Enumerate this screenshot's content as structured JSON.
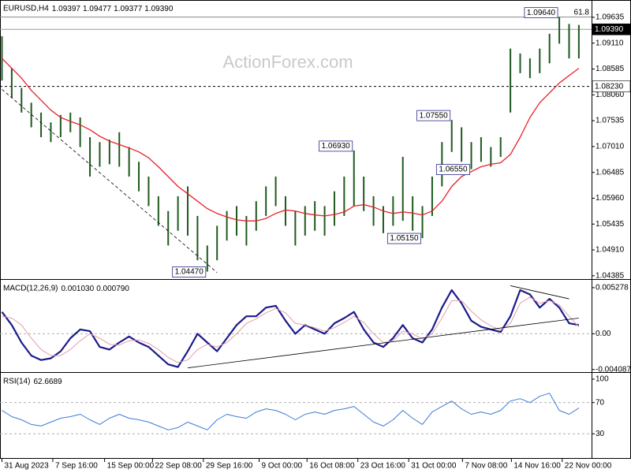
{
  "chart_data": [
    {
      "type": "hilo",
      "title": "EURUSD,H4",
      "quote": [
        1.09397,
        1.09477,
        1.09377,
        {
          "value": 1.0939,
          "label": "1.09390"
        }
      ],
      "watermark": "ActionForex.com",
      "color": "#1e5a1e",
      "xlim": [
        -0.2,
        60.3
      ],
      "ylim": [
        1.0435,
        1.0973
      ],
      "yticks": [
        1.09635,
        {
          "value": 1.0911,
          "label": "1.09110"
        },
        1.08585,
        {
          "value": 1.0806,
          "label": "1.08060"
        },
        1.07535,
        {
          "value": 1.0701,
          "label": "1.07010"
        },
        1.06485,
        {
          "value": 1.0596,
          "label": "1.05960"
        },
        1.05435,
        {
          "value": 1.0491,
          "label": "1.04910"
        },
        1.04385
      ],
      "low": [
        1.0835,
        1.08,
        1.077,
        1.074,
        1.072,
        1.071,
        1.072,
        1.073,
        1.07,
        1.064,
        1.066,
        1.0665,
        1.066,
        1.064,
        1.061,
        1.058,
        1.054,
        1.05,
        1.053,
        1.052,
        1.047,
        1.0447,
        1.047,
        1.051,
        1.052,
        1.05,
        1.053,
        1.056,
        1.058,
        1.054,
        1.05,
        1.052,
        1.053,
        1.052,
        1.054,
        1.056,
        1.058,
        1.057,
        1.054,
        1.0525,
        1.054,
        1.055,
        1.053,
        1.0515,
        1.056,
        1.062,
        1.069,
        1.067,
        1.0655,
        1.067,
        1.066,
        1.068,
        1.077,
        1.085,
        1.084,
        1.085,
        1.087,
        1.091,
        1.088,
        1.088
      ],
      "high": [
        1.0925,
        1.086,
        1.082,
        1.079,
        1.077,
        1.075,
        1.0765,
        1.077,
        1.076,
        1.072,
        1.071,
        1.0715,
        1.073,
        1.07,
        1.067,
        1.064,
        1.06,
        1.057,
        1.06,
        1.062,
        1.056,
        1.05,
        1.054,
        1.057,
        1.058,
        1.056,
        1.059,
        1.062,
        1.064,
        1.06,
        1.057,
        1.058,
        1.059,
        1.058,
        1.061,
        1.064,
        1.0693,
        1.064,
        1.06,
        1.058,
        1.06,
        1.068,
        1.06,
        1.058,
        1.064,
        1.071,
        1.0755,
        1.074,
        1.071,
        1.072,
        1.07,
        1.072,
        1.09,
        1.089,
        1.088,
        1.09,
        1.093,
        1.0964,
        1.095,
        1.0948
      ],
      "series": [
        {
          "color": "#e8202a",
          "width": 1.3,
          "values": [
            1.088,
            1.086,
            1.084,
            1.0815,
            1.0795,
            1.0775,
            1.076,
            1.0752,
            1.0745,
            1.0735,
            1.0722,
            1.0712,
            1.0705,
            1.0698,
            1.069,
            1.0678,
            1.066,
            1.064,
            1.062,
            1.0605,
            1.059,
            1.0575,
            1.0565,
            1.0558,
            1.0552,
            1.055,
            1.055,
            1.0555,
            1.0565,
            1.0572,
            1.057,
            1.0565,
            1.0562,
            1.056,
            1.0563,
            1.0568,
            1.058,
            1.0583,
            1.0578,
            1.057,
            1.0565,
            1.0568,
            1.0566,
            1.0562,
            1.057,
            1.059,
            1.062,
            1.064,
            1.065,
            1.066,
            1.0665,
            1.0668,
            1.0685,
            1.072,
            1.076,
            1.079,
            1.081,
            1.083,
            1.0845,
            1.086
          ]
        }
      ],
      "annotations": [
        {
          "value": 1.0964,
          "label": "1.09640"
        },
        {
          "value": 1.0755,
          "label": "1.07550"
        },
        {
          "value": 1.0693,
          "label": "1.06930"
        },
        {
          "value": 1.0655,
          "label": "1.06550"
        },
        {
          "value": 1.0515,
          "label": "1.05150"
        },
        {
          "value": 1.0447,
          "label": "1.04470"
        }
      ],
      "fib": {
        "level": 61.8,
        "price": 1.0964
      },
      "price_tags": [
        {
          "value": 1.0939,
          "label": "1.09390",
          "fill": "#000000",
          "text_color": "#ffffff",
          "dashed": false,
          "line_color": "#9a9a9a"
        },
        {
          "value": 1.0823,
          "label": "1.08230",
          "fill": "#ffffff",
          "text_color": "#000000",
          "dashed": true,
          "line_color": "#000000"
        }
      ],
      "trendlines": [
        {
          "x": [
            0,
            22
          ],
          "y": [
            1.0817,
            1.0445
          ],
          "dashed": true
        }
      ]
    },
    {
      "type": "line",
      "title": "MACD(12,26,9)",
      "quote": [
        {
          "value": 0.00103,
          "label": "0.001030"
        },
        {
          "value": 0.00079,
          "label": "0.000790"
        }
      ],
      "xlim": [
        -0.2,
        60.3
      ],
      "ylim": [
        -0.0042,
        0.0059
      ],
      "yticks": [
        0.005278,
        {
          "value": 0,
          "label": "0.00"
        },
        -0.004087
      ],
      "levels": [
        0
      ],
      "series": [
        {
          "color": "#1a1a8c",
          "width": 2.2,
          "values": [
            0.0025,
            0.001,
            -0.001,
            -0.0025,
            -0.003,
            -0.0028,
            -0.002,
            -0.0005,
            0.0005,
            0.0003,
            -0.0015,
            -0.0018,
            -0.001,
            -0.0003,
            -0.001,
            -0.0015,
            -0.0025,
            -0.0035,
            -0.0038,
            -0.002,
            0.0,
            -0.001,
            -0.002,
            -0.0005,
            0.001,
            0.002,
            0.002,
            0.003,
            0.0032,
            0.0015,
            0.0,
            0.001,
            0.0005,
            0.0,
            0.0012,
            0.0018,
            0.0025,
            0.0005,
            -0.001,
            -0.0015,
            -0.0005,
            0.001,
            -0.0005,
            -0.001,
            0.0005,
            0.003,
            0.005,
            0.0035,
            0.0015,
            0.0008,
            0.0005,
            0.0002,
            0.002,
            0.005,
            0.0045,
            0.003,
            0.004,
            0.003,
            0.0012,
            0.001
          ]
        },
        {
          "color": "#e0a0a8",
          "width": 1,
          "values": [
            0.002,
            0.0018,
            0.001,
            -0.0005,
            -0.0018,
            -0.0025,
            -0.0025,
            -0.0018,
            -0.0008,
            0.0,
            -0.0005,
            -0.0012,
            -0.0013,
            -0.0008,
            -0.0007,
            -0.0011,
            -0.0018,
            -0.0027,
            -0.0033,
            -0.003,
            -0.0018,
            -0.0012,
            -0.0015,
            -0.001,
            0.0,
            0.0012,
            0.0017,
            0.0024,
            0.0029,
            0.0024,
            0.0012,
            0.001,
            0.0007,
            0.0003,
            0.0007,
            0.0013,
            0.002,
            0.0013,
            0.0,
            -0.001,
            -0.0008,
            0.0003,
            0.0,
            -0.0006,
            0.0,
            0.0018,
            0.0038,
            0.0038,
            0.0026,
            0.0016,
            0.0009,
            0.0004,
            0.0012,
            0.0035,
            0.0042,
            0.0035,
            0.0038,
            0.0033,
            0.002,
            0.0008
          ]
        }
      ],
      "trendlines": [
        {
          "x": [
            19,
            59
          ],
          "y": [
            -0.0039,
            0.0018
          ],
          "dashed": false
        },
        {
          "x": [
            52,
            58
          ],
          "y": [
            0.0055,
            0.004
          ],
          "dashed": false
        }
      ]
    },
    {
      "type": "line",
      "title": "RSI(14)",
      "quote": [
        62.6689
      ],
      "xlim": [
        -0.2,
        60.3
      ],
      "ylim": [
        0,
        105
      ],
      "yticks": [
        100,
        70,
        30
      ],
      "levels": [
        70,
        30
      ],
      "series": [
        {
          "color": "#3a7bd5",
          "width": 1,
          "values": [
            60,
            52,
            48,
            42,
            40,
            45,
            50,
            52,
            55,
            48,
            42,
            50,
            55,
            50,
            48,
            45,
            40,
            35,
            38,
            45,
            40,
            35,
            48,
            55,
            52,
            50,
            58,
            62,
            60,
            55,
            48,
            55,
            58,
            55,
            60,
            62,
            65,
            55,
            45,
            40,
            48,
            60,
            50,
            42,
            58,
            65,
            72,
            62,
            55,
            58,
            55,
            60,
            72,
            75,
            70,
            78,
            82,
            60,
            55,
            63
          ]
        }
      ],
      "xticks": [
        {
          "value": 0,
          "label": "31 Aug 2023"
        },
        {
          "value": 5.2,
          "label": "7 Sep 16:00"
        },
        {
          "value": 10.5,
          "label": "15 Sep 00:00"
        },
        {
          "value": 15.4,
          "label": "22 Sep 08:00"
        },
        {
          "value": 20.6,
          "label": "29 Sep 16:00"
        },
        {
          "value": 26.3,
          "label": "9 Oct 00:00"
        },
        {
          "value": 31.2,
          "label": "16 Oct 08:00"
        },
        {
          "value": 36.4,
          "label": "23 Oct 16:00"
        },
        {
          "value": 41.6,
          "label": "31 Oct 00:00"
        },
        {
          "value": 47.1,
          "label": "7 Nov 08:00"
        },
        {
          "value": 52.1,
          "label": "14 Nov 16:00"
        },
        {
          "value": 57.3,
          "label": "22 Nov 00:00"
        }
      ]
    }
  ]
}
